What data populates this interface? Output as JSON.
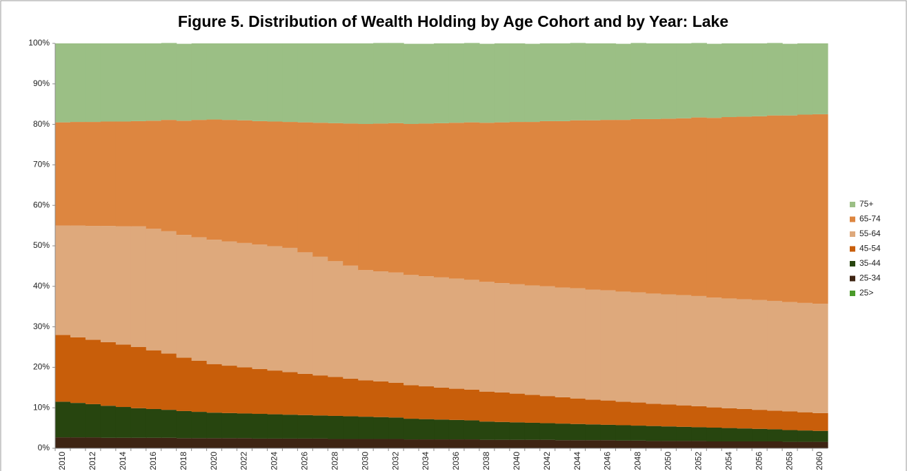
{
  "chart_data": {
    "type": "stacked_area_steps",
    "title": "Figure 5. Distribution of Wealth Holding by Age Cohort and by Year: Lake",
    "categories": [
      "2010",
      null,
      "2012",
      null,
      "2014",
      null,
      "2016",
      null,
      "2018",
      null,
      "2020",
      null,
      "2022",
      null,
      "2024",
      null,
      "2026",
      null,
      "2028",
      null,
      "2030",
      null,
      "2032",
      null,
      "2034",
      null,
      "2036",
      null,
      "2038",
      null,
      "2040",
      null,
      "2042",
      null,
      "2044",
      null,
      "2046",
      null,
      "2048",
      null,
      "2050",
      null,
      "2052",
      null,
      "2054",
      null,
      "2056",
      null,
      "2058",
      null,
      "2060"
    ],
    "ylim": [
      0,
      100
    ],
    "yticks": [
      {
        "value": 0,
        "label": "0%"
      },
      {
        "value": 10,
        "label": "10%"
      },
      {
        "value": 20,
        "label": "20%"
      },
      {
        "value": 30,
        "label": "30%"
      },
      {
        "value": 40,
        "label": "40%"
      },
      {
        "value": 50,
        "label": "50%"
      },
      {
        "value": 60,
        "label": "60%"
      },
      {
        "value": 70,
        "label": "70%"
      },
      {
        "value": 80,
        "label": "80%"
      },
      {
        "value": 90,
        "label": "90%"
      },
      {
        "value": 100,
        "label": "100%"
      }
    ],
    "series": [
      {
        "name": "25>",
        "color": "#4a9a2a",
        "values": [
          0,
          0,
          0,
          0,
          0,
          0,
          0,
          0,
          0,
          0,
          0,
          0,
          0,
          0,
          0,
          0,
          0,
          0,
          0,
          0,
          0,
          0,
          0,
          0,
          0,
          0,
          0,
          0,
          0,
          0,
          0,
          0,
          0,
          0,
          0,
          0,
          0,
          0,
          0,
          0,
          0,
          0,
          0,
          0,
          0,
          0,
          0,
          0,
          0,
          0,
          0
        ]
      },
      {
        "name": "25-34",
        "color": "#3e2413",
        "values": [
          2.7,
          2.7,
          2.7,
          2.6,
          2.6,
          2.6,
          2.6,
          2.6,
          2.5,
          2.5,
          2.5,
          2.5,
          2.5,
          2.4,
          2.4,
          2.4,
          2.4,
          2.4,
          2.3,
          2.3,
          2.3,
          2.3,
          2.3,
          2.2,
          2.2,
          2.2,
          2.2,
          2.2,
          2.1,
          2.1,
          2.1,
          2.1,
          2.1,
          2.0,
          2.0,
          2.0,
          2.0,
          1.9,
          1.9,
          1.8,
          1.8,
          1.8,
          1.8,
          1.7,
          1.7,
          1.7,
          1.7,
          1.7,
          1.6,
          1.6,
          1.6
        ]
      },
      {
        "name": "35-44",
        "color": "#27450f",
        "values": [
          8.8,
          8.5,
          8.2,
          7.9,
          7.6,
          7.3,
          7.1,
          6.9,
          6.7,
          6.5,
          6.3,
          6.2,
          6.1,
          6.1,
          6.0,
          5.9,
          5.8,
          5.7,
          5.7,
          5.6,
          5.5,
          5.4,
          5.3,
          5.1,
          5.0,
          4.9,
          4.8,
          4.7,
          4.5,
          4.4,
          4.3,
          4.2,
          4.1,
          4.1,
          4.0,
          3.9,
          3.8,
          3.8,
          3.7,
          3.7,
          3.6,
          3.5,
          3.4,
          3.4,
          3.3,
          3.2,
          3.1,
          3.0,
          2.9,
          2.8,
          2.7
        ]
      },
      {
        "name": "45-54",
        "color": "#c85e0a",
        "values": [
          16.5,
          16.2,
          15.9,
          15.7,
          15.4,
          15.1,
          14.5,
          13.9,
          13.2,
          12.6,
          12.0,
          11.7,
          11.4,
          11.1,
          10.8,
          10.5,
          10.2,
          9.9,
          9.6,
          9.3,
          9.0,
          8.8,
          8.6,
          8.3,
          8.1,
          7.9,
          7.7,
          7.6,
          7.4,
          7.3,
          7.1,
          6.9,
          6.7,
          6.5,
          6.3,
          6.1,
          6.0,
          5.8,
          5.7,
          5.5,
          5.4,
          5.3,
          5.2,
          5.0,
          4.9,
          4.8,
          4.7,
          4.6,
          4.6,
          4.5,
          4.4
        ]
      },
      {
        "name": "55-64",
        "color": "#dea97c",
        "values": [
          27.0,
          27.6,
          28.1,
          28.7,
          29.2,
          29.8,
          30.0,
          30.2,
          30.3,
          30.5,
          30.7,
          30.7,
          30.7,
          30.7,
          30.7,
          30.7,
          30.0,
          29.3,
          28.6,
          27.9,
          27.2,
          27.2,
          27.2,
          27.2,
          27.2,
          27.2,
          27.2,
          27.1,
          27.1,
          27.0,
          27.0,
          27.0,
          27.1,
          27.1,
          27.2,
          27.2,
          27.2,
          27.2,
          27.2,
          27.2,
          27.2,
          27.2,
          27.2,
          27.1,
          27.1,
          27.1,
          27.1,
          27.1,
          27.0,
          27.0,
          27.0
        ]
      },
      {
        "name": "65-74",
        "color": "#dd8640",
        "values": [
          25.5,
          25.6,
          25.7,
          25.8,
          25.9,
          26.0,
          26.7,
          27.5,
          28.2,
          29.0,
          29.7,
          30.0,
          30.3,
          30.5,
          30.8,
          31.1,
          32.1,
          33.1,
          34.1,
          35.1,
          36.1,
          36.5,
          36.9,
          37.3,
          37.7,
          38.1,
          38.5,
          38.9,
          39.3,
          39.7,
          40.1,
          40.4,
          40.8,
          41.1,
          41.5,
          41.8,
          42.1,
          42.4,
          42.8,
          43.1,
          43.4,
          43.7,
          44.1,
          44.4,
          44.8,
          45.1,
          45.4,
          45.8,
          46.1,
          46.5,
          46.8
        ]
      },
      {
        "name": "75+",
        "color": "#9bbf85",
        "values": [
          19.5,
          19.4,
          19.4,
          19.3,
          19.3,
          19.2,
          19.1,
          19.0,
          19.0,
          18.9,
          18.8,
          18.9,
          19.0,
          19.2,
          19.3,
          19.4,
          19.5,
          19.6,
          19.7,
          19.8,
          19.9,
          19.9,
          19.8,
          19.8,
          19.7,
          19.7,
          19.6,
          19.6,
          19.5,
          19.5,
          19.4,
          19.3,
          19.2,
          19.2,
          19.1,
          19.0,
          18.9,
          18.8,
          18.8,
          18.7,
          18.6,
          18.5,
          18.4,
          18.3,
          18.2,
          18.1,
          18.0,
          17.9,
          17.7,
          17.6,
          17.5
        ]
      }
    ]
  }
}
